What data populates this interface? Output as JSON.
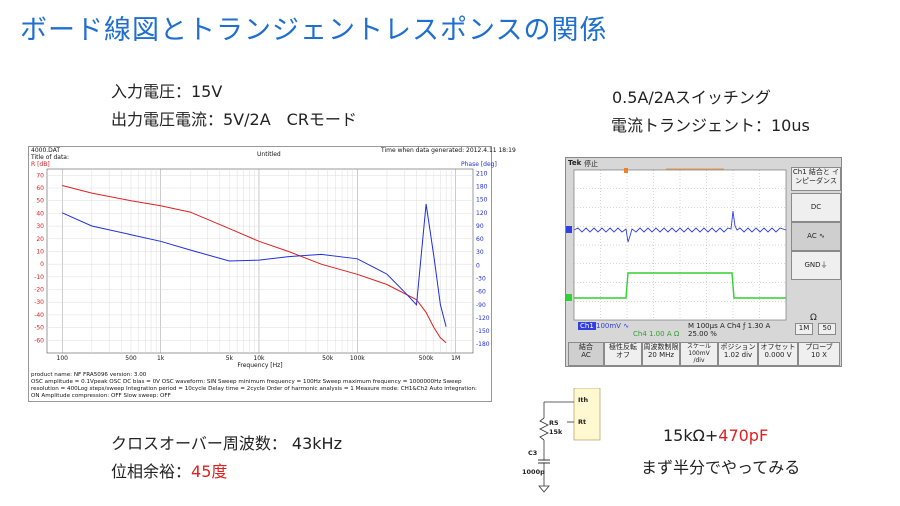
{
  "slide": {
    "title": "ボード線図とトランジェントレスポンスの関係",
    "input_voltage": "入力電圧：15V",
    "output": "出力電圧電流：5V/2A　CRモード",
    "switching": "0.5A/2Aスイッチング",
    "transient": "電流トランジェント：10us",
    "crossover": "クロスオーバー周波数： 43kHz",
    "phase_margin_label": "位相余裕：",
    "phase_margin_value": "45度",
    "comp_value_a": "15kΩ+",
    "comp_value_b": "470pF",
    "comp_note": "まず半分でやってみる",
    "colors": {
      "title": "#1f6fd0",
      "highlight": "#e02020"
    }
  },
  "bode": {
    "file": "4000.DAT",
    "title_of_data": "Title of data:",
    "plot_title": "Untitled",
    "generated": "Time when data generated: 2012.4.11 18:19",
    "left_unit": "R [dB]",
    "right_unit": "Phase [deg]",
    "xlabel": "Frequency [Hz]",
    "footer": [
      "product name: NF FRA5096          version: 3.00",
      "OSC amplitude = 0.1Vpeak  OSC DC bias = 0V  OSC waveform: SIN  Sweep minimum frequency = 100Hz  Sweep maximum frequency = 1000000Hz  Sweep",
      "resolution = 400Log steps/sweep  Integration period = 10cycle  Delay time = 2cycle  Order of harmonic analysis = 1  Measure mode: CH1&Ch2  Auto integration:",
      "ON  Amplitude compression: OFF  Slow sweep: OFF"
    ]
  },
  "chart_data": {
    "type": "line",
    "title": "Untitled",
    "xlabel": "Frequency [Hz]",
    "ylabel": "R [dB]",
    "y2label": "Phase [deg]",
    "xscale": "log",
    "xlim": [
      70,
      1500000
    ],
    "ylim": [
      -70,
      75
    ],
    "y2lim": [
      -200,
      220
    ],
    "x_ticks": [
      "100",
      "500",
      "1k",
      "5k",
      "10k",
      "50k",
      "100k",
      "500k",
      "1M"
    ],
    "y_ticks": [
      70,
      60,
      50,
      40,
      30,
      20,
      10,
      0,
      -10,
      -20,
      -30,
      -40,
      -50,
      -60
    ],
    "y2_ticks": [
      210,
      180,
      150,
      120,
      90,
      60,
      30,
      0,
      -30,
      -60,
      -90,
      -120,
      -150,
      -180
    ],
    "grid": true,
    "series": [
      {
        "color": "#e02020",
        "axis": "left",
        "x": [
          100,
          200,
          500,
          1000,
          2000,
          5000,
          10000,
          20000,
          43000,
          100000,
          200000,
          400000,
          500000,
          600000,
          700000,
          800000
        ],
        "values": [
          62,
          56,
          50,
          46,
          41,
          28,
          18,
          10,
          0,
          -8,
          -16,
          -28,
          -38,
          -50,
          -58,
          -62
        ]
      },
      {
        "color": "#1f2fe0",
        "axis": "right",
        "x": [
          100,
          200,
          500,
          1000,
          2000,
          5000,
          10000,
          20000,
          43000,
          100000,
          200000,
          300000,
          400000,
          500000,
          600000,
          700000,
          800000
        ],
        "values": [
          120,
          90,
          70,
          55,
          35,
          10,
          12,
          20,
          25,
          15,
          -20,
          -60,
          -90,
          140,
          20,
          -90,
          -140
        ]
      }
    ]
  },
  "scope": {
    "brand": "Tek",
    "mode": "停止",
    "menu_title": "Ch1 結合と インピーダンス",
    "menu_items": [
      "DC",
      "AC ∿",
      "GND⏚"
    ],
    "omega": "Ω",
    "imp_buttons": [
      "1M",
      "50"
    ],
    "ch1_label": "Ch1",
    "ch1_scale": "100mV ∿",
    "ch4_scale": "Ch4   1.00 A Ω",
    "timebase": "M 100μs  A  Ch4  ƒ   1.30 A",
    "trigger_pos": "25.00 %",
    "softkeys": [
      "結合\nAC",
      "極性反転\nオフ",
      "周波数制限\n20 MHz",
      "スケール\n100mV\n/div",
      "ポジション\n1.02 div",
      "オフセット\n0.000 V",
      "プローブ\n10 X"
    ]
  },
  "schematic": {
    "pins": [
      "Ith",
      "Rt"
    ],
    "r5": "R5",
    "r5_val": "15k",
    "c3": "C3",
    "c3_val": "1000p"
  }
}
